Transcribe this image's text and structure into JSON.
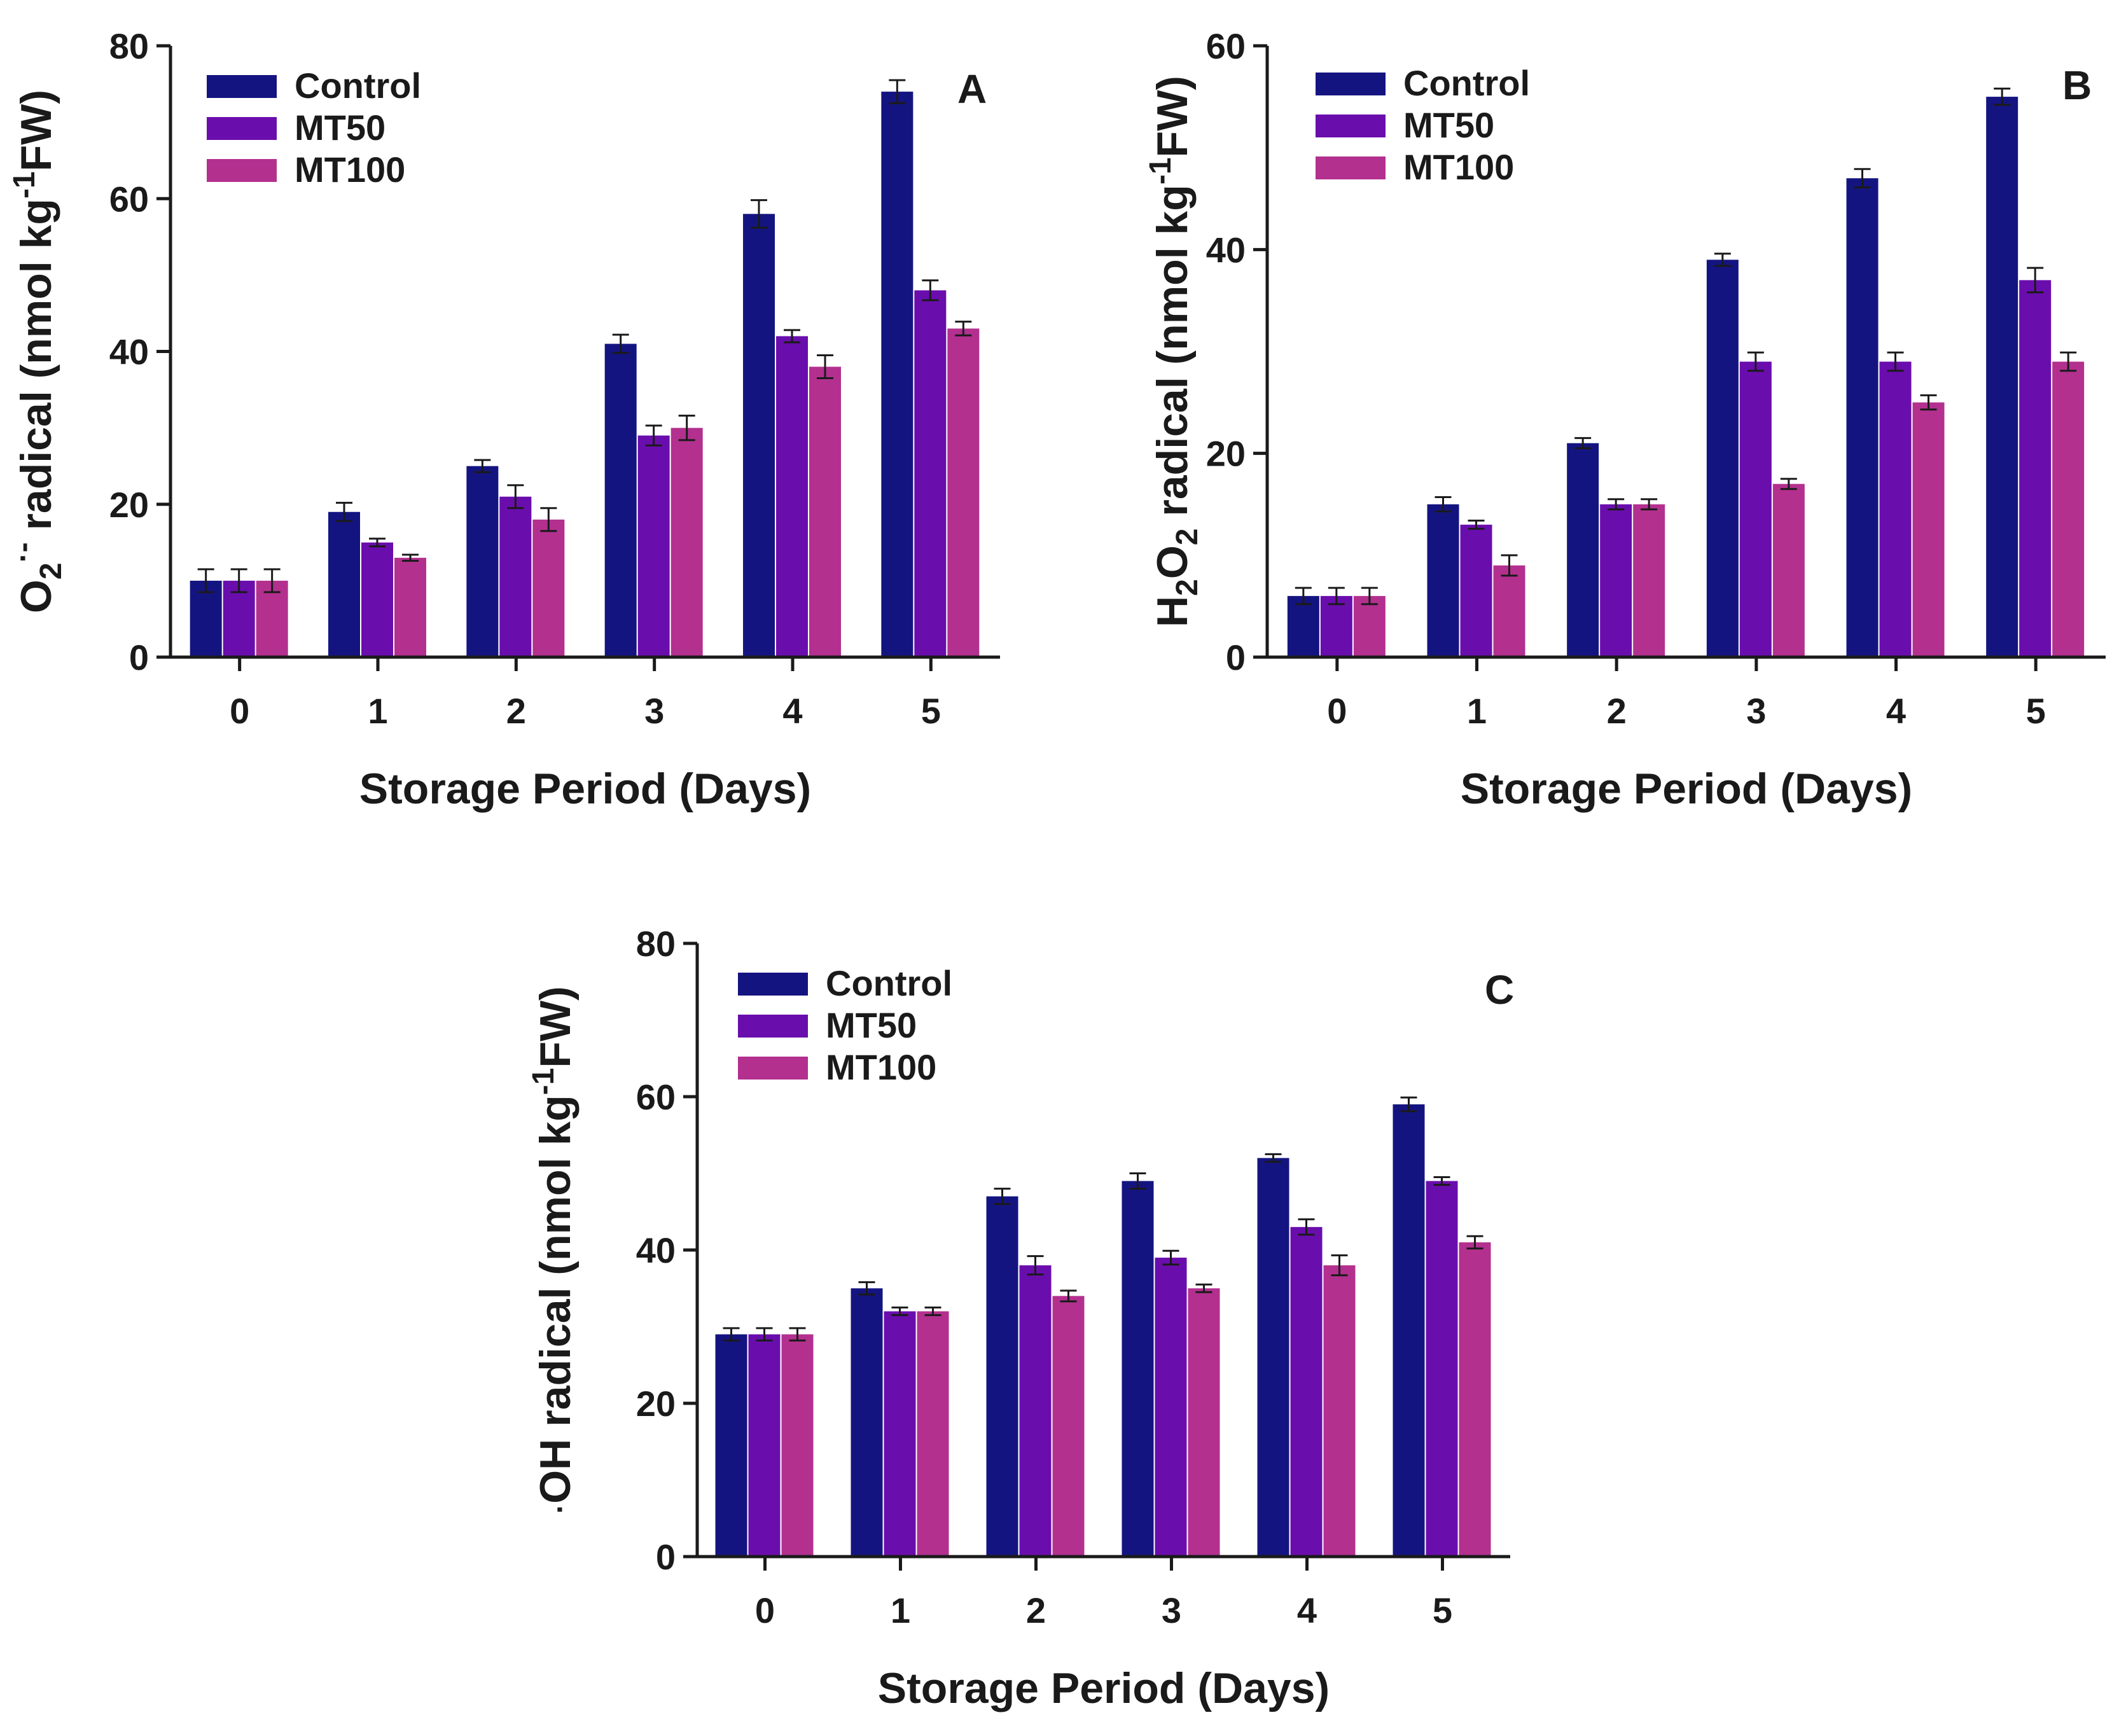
{
  "colors": {
    "Control": "#141481",
    "MT50": "#6a0dad",
    "MT100": "#b3308f",
    "axis": "#1a1a1a"
  },
  "chart_data": [
    {
      "type": "bar",
      "panel": "A",
      "categories": [
        "0",
        "1",
        "2",
        "3",
        "4",
        "5"
      ],
      "xlabel": "Storage Period (Days)",
      "ylabel": {
        "main": "O",
        "sub": "2",
        "sup": "·-",
        "rest": " radical (nmol kg",
        "exp": "-1",
        "end": "FW)"
      },
      "ylim": [
        0,
        80
      ],
      "yticks": [
        "0",
        "20",
        "40",
        "60",
        "80"
      ],
      "legend": [
        "Control",
        "MT50",
        "MT100"
      ],
      "series": [
        {
          "name": "Control",
          "values": [
            10,
            19,
            25,
            41,
            58,
            74
          ],
          "errors": [
            1.5,
            1.2,
            0.8,
            1.2,
            1.8,
            1.5
          ]
        },
        {
          "name": "MT50",
          "values": [
            10,
            15,
            21,
            29,
            42,
            48
          ],
          "errors": [
            1.5,
            0.5,
            1.5,
            1.3,
            0.8,
            1.3
          ]
        },
        {
          "name": "MT100",
          "values": [
            10,
            13,
            18,
            30,
            38,
            43
          ],
          "errors": [
            1.5,
            0.4,
            1.5,
            1.6,
            1.5,
            0.9
          ]
        }
      ]
    },
    {
      "type": "bar",
      "panel": "B",
      "categories": [
        "0",
        "1",
        "2",
        "3",
        "4",
        "5"
      ],
      "xlabel": "Storage Period (Days)",
      "ylabel": {
        "main": "H",
        "sub": "2",
        "mid": "O",
        "sub2": "2",
        "rest": " radical (nmol kg",
        "exp": "-1",
        "end": "FW)"
      },
      "ylim": [
        0,
        60
      ],
      "yticks": [
        "0",
        "20",
        "40",
        "60"
      ],
      "legend": [
        "Control",
        "MT50",
        "MT100"
      ],
      "series": [
        {
          "name": "Control",
          "values": [
            6,
            15,
            21,
            39,
            47,
            55
          ],
          "errors": [
            0.8,
            0.7,
            0.5,
            0.6,
            0.9,
            0.8
          ]
        },
        {
          "name": "MT50",
          "values": [
            6,
            13,
            15,
            29,
            29,
            37
          ],
          "errors": [
            0.8,
            0.4,
            0.5,
            0.9,
            0.9,
            1.2
          ]
        },
        {
          "name": "MT100",
          "values": [
            6,
            9,
            15,
            17,
            25,
            29
          ],
          "errors": [
            0.8,
            1.0,
            0.5,
            0.5,
            0.7,
            0.9
          ]
        }
      ]
    },
    {
      "type": "bar",
      "panel": "C",
      "categories": [
        "0",
        "1",
        "2",
        "3",
        "4",
        "5"
      ],
      "xlabel": "Storage Period (Days)",
      "ylabel": {
        "pre": "·",
        "rest": "OH radical (nmol kg",
        "exp": "-1",
        "end": "FW)"
      },
      "ylim": [
        0,
        80
      ],
      "yticks": [
        "0",
        "20",
        "40",
        "60",
        "80"
      ],
      "legend": [
        "Control",
        "MT50",
        "MT100"
      ],
      "series": [
        {
          "name": "Control",
          "values": [
            29,
            35,
            47,
            49,
            52,
            59
          ],
          "errors": [
            0.8,
            0.8,
            1.0,
            1.0,
            0.5,
            0.9
          ]
        },
        {
          "name": "MT50",
          "values": [
            29,
            32,
            38,
            39,
            43,
            49
          ],
          "errors": [
            0.8,
            0.5,
            1.2,
            0.9,
            1.0,
            0.5
          ]
        },
        {
          "name": "MT100",
          "values": [
            29,
            32,
            34,
            35,
            38,
            41
          ],
          "errors": [
            0.8,
            0.5,
            0.7,
            0.5,
            1.3,
            0.8
          ]
        }
      ]
    }
  ]
}
